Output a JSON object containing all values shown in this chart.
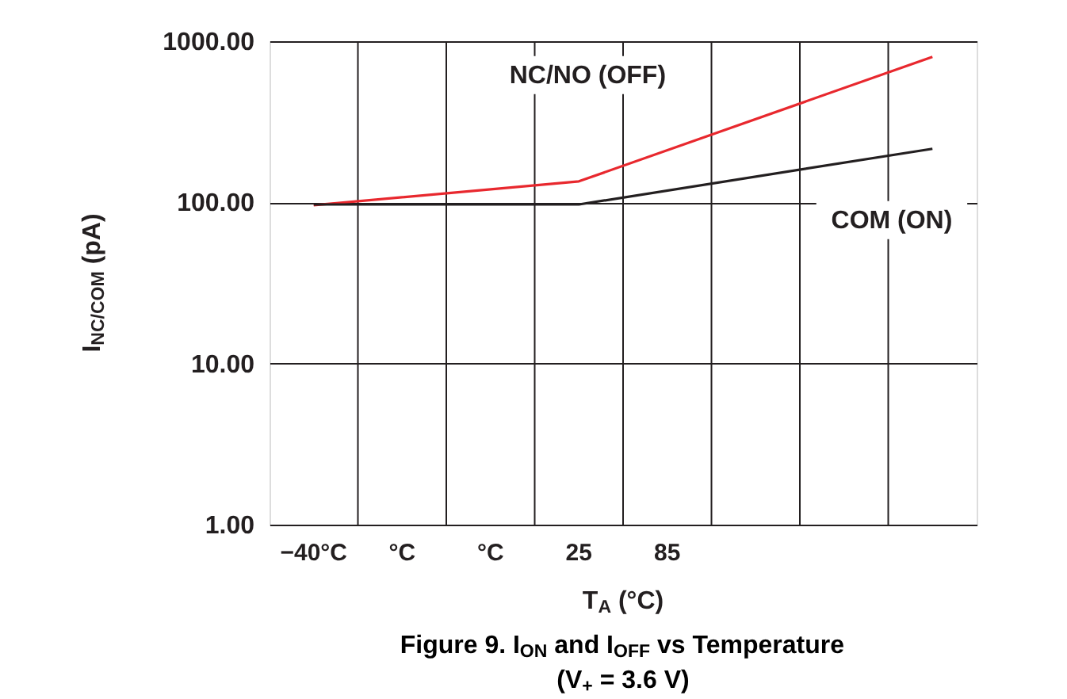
{
  "chart_data": {
    "type": "line",
    "title": "Figure 9. I$_{ON}$ and I$_{OFF}$ vs Temperature",
    "subtitle": "(V$_{+}$ = 3.6 V)",
    "xlabel": "T$_{A}$ (°C)",
    "ylabel": "I$_{NC/COM}$ (pA)",
    "categories": [
      "−40°C",
      "°C",
      "°C",
      "25",
      "85",
      null,
      null,
      null
    ],
    "series": [
      {
        "color": "#e8282e",
        "values": [
          96,
          null,
          null,
          135,
          null,
          null,
          null,
          800
        ]
      },
      {
        "color": "#231f20",
        "values": [
          97,
          null,
          null,
          97,
          null,
          null,
          null,
          215
        ]
      }
    ],
    "log": "y",
    "grid": true,
    "legend": false,
    "marker": "none",
    "line_style": "solid",
    "ylim": [
      1,
      1000
    ],
    "yticks": [
      {
        "value": 1,
        "label": "1.00"
      },
      {
        "value": 10,
        "label": "10.00"
      },
      {
        "value": 100,
        "label": "100.00"
      },
      {
        "value": 1000,
        "label": "1000.00"
      }
    ],
    "annotations": [
      "NC/NO (OFF)",
      "COM (ON)"
    ]
  }
}
